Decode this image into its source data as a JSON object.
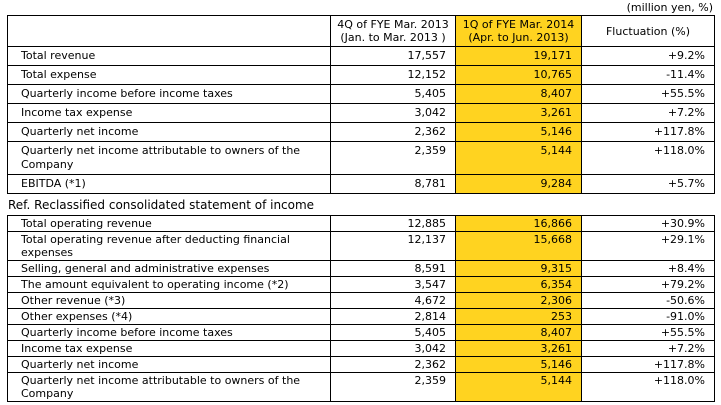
{
  "unit_note": "(million yen, %)",
  "colors": {
    "highlight": "#ffd320",
    "border": "#000000",
    "text": "#000000"
  },
  "columns": {
    "prev": {
      "line1": "4Q of FYE Mar. 2013",
      "line2": "(Jan. to Mar. 2013 )"
    },
    "curr": {
      "line1": "1Q of FYE Mar. 2014",
      "line2": "(Apr. to Jun. 2013)"
    },
    "fluctuation": "Fluctuation (%)"
  },
  "summary_table": {
    "rows": [
      {
        "label": "Total revenue",
        "prev": "17,557",
        "curr": "19,171",
        "fluct": "+9.2%"
      },
      {
        "label": "Total expense",
        "prev": "12,152",
        "curr": "10,765",
        "fluct": "-11.4%"
      },
      {
        "label": "Quarterly income before income taxes",
        "prev": "5,405",
        "curr": "8,407",
        "fluct": "+55.5%"
      },
      {
        "label": "Income tax expense",
        "prev": "3,042",
        "curr": "3,261",
        "fluct": "+7.2%"
      },
      {
        "label": "Quarterly net income",
        "prev": "2,362",
        "curr": "5,146",
        "fluct": "+117.8%"
      },
      {
        "label": "Quarterly net income attributable to owners of the Company",
        "prev": "2,359",
        "curr": "5,144",
        "fluct": "+118.0%"
      },
      {
        "label": "EBITDA (*1)",
        "prev": "8,781",
        "curr": "9,284",
        "fluct": "+5.7%"
      }
    ]
  },
  "ref_section": {
    "title": "Ref. Reclassified consolidated statement of income",
    "rows": [
      {
        "label": "Total operating revenue",
        "prev": "12,885",
        "curr": "16,866",
        "fluct": "+30.9%"
      },
      {
        "label": "Total operating revenue after deducting financial expenses",
        "prev": "12,137",
        "curr": "15,668",
        "fluct": "+29.1%"
      },
      {
        "label": "Selling, general and administrative expenses",
        "prev": "8,591",
        "curr": "9,315",
        "fluct": "+8.4%"
      },
      {
        "label": "The amount equivalent to operating income (*2)",
        "prev": "3,547",
        "curr": "6,354",
        "fluct": "+79.2%"
      },
      {
        "label": "Other revenue (*3)",
        "prev": "4,672",
        "curr": "2,306",
        "fluct": "-50.6%"
      },
      {
        "label": "Other expenses (*4)",
        "prev": "2,814",
        "curr": "253",
        "fluct": "-91.0%"
      },
      {
        "label": "Quarterly income before income taxes",
        "prev": "5,405",
        "curr": "8,407",
        "fluct": "+55.5%"
      },
      {
        "label": "Income tax expense",
        "prev": "3,042",
        "curr": "3,261",
        "fluct": "+7.2%"
      },
      {
        "label": "Quarterly net income",
        "prev": "2,362",
        "curr": "5,146",
        "fluct": "+117.8%"
      },
      {
        "label": "Quarterly net income attributable to owners of the Company",
        "prev": "2,359",
        "curr": "5,144",
        "fluct": "+118.0%"
      }
    ]
  }
}
